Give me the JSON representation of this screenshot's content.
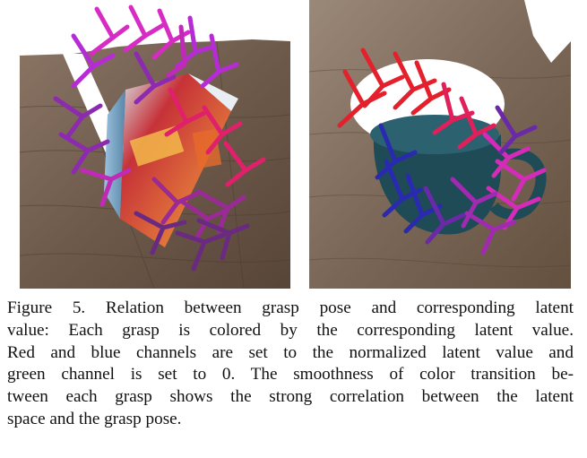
{
  "figure": {
    "caption_lines": [
      "Figure 5. Relation between grasp pose and corresponding latent",
      "value: Each grasp is colored by the corresponding latent value.",
      "Red and blue channels are set to the normalized latent value and",
      "green channel is set to 0. The smoothness of color transition be-",
      "tween each grasp shows the strong correlation between the latent",
      "space and the grasp pose."
    ]
  },
  "colors": {
    "wood_dark": "#5e4a3c",
    "wood_mid": "#7a6656",
    "wood_light": "#9a8676",
    "box_red": "#c1272d",
    "box_blue": "#8fb8d6",
    "mug_teal": "#1d4a54",
    "grasp_red": "#e0203a",
    "grasp_magenta": "#d02cc8",
    "grasp_purple": "#7a2aa0",
    "grasp_blue": "#2a2aa8"
  }
}
